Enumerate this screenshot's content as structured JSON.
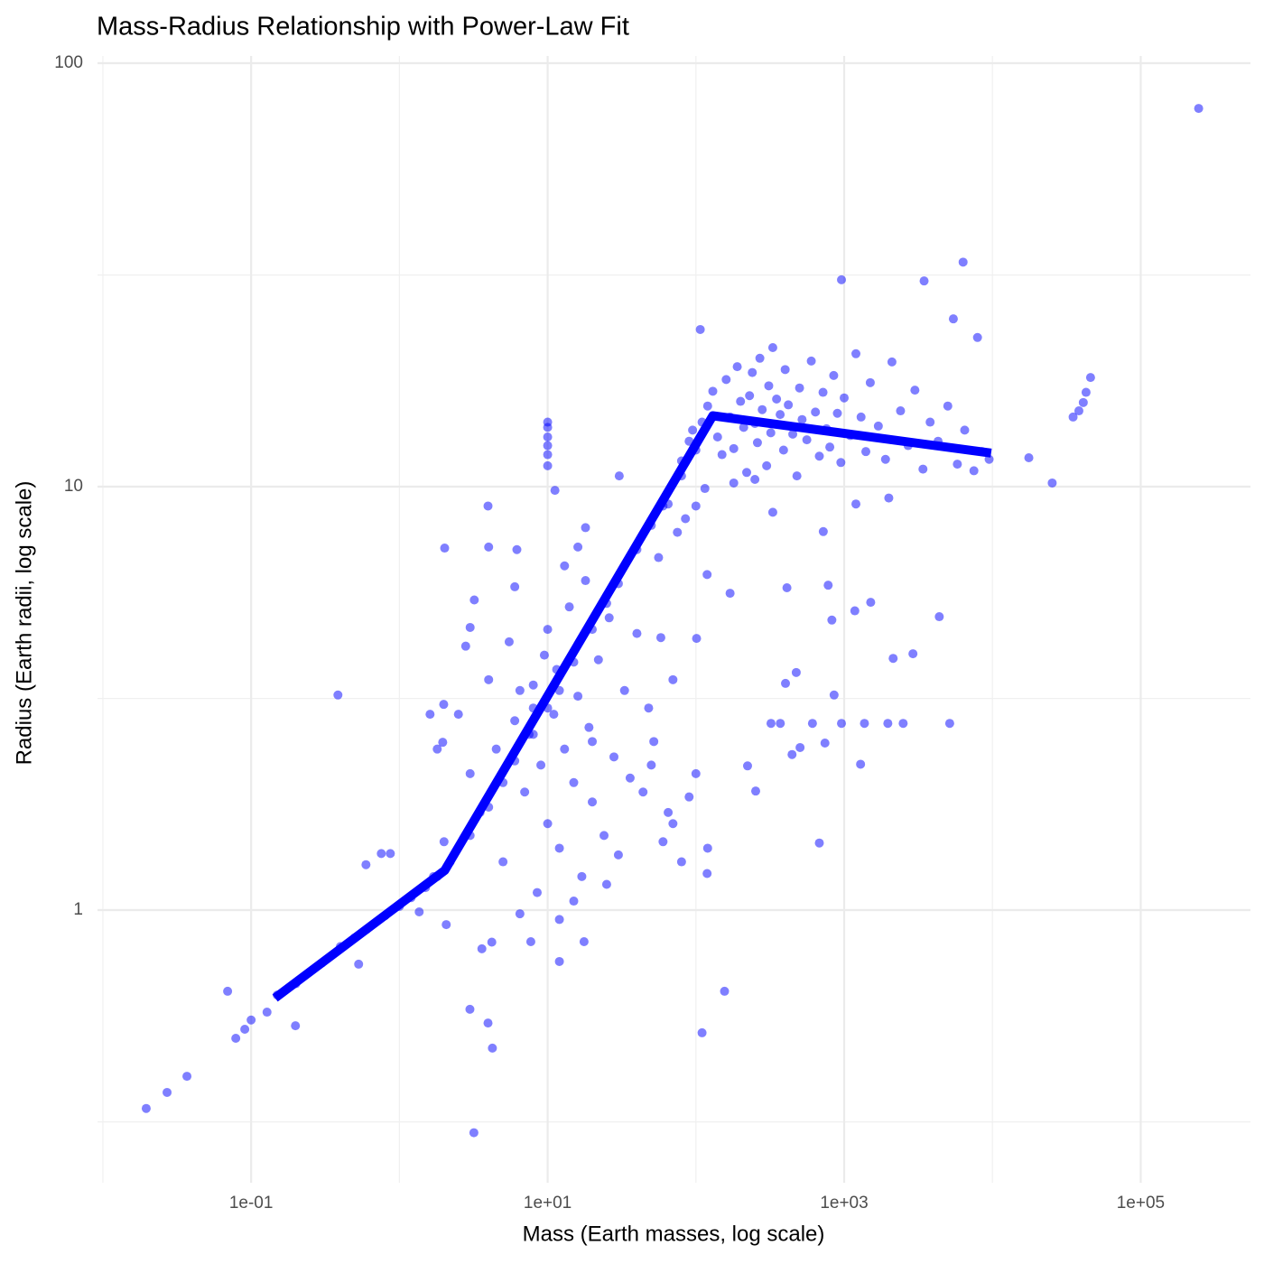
{
  "chart_data": {
    "type": "scatter",
    "title": "Mass-Radius Relationship with Power-Law Fit",
    "x_label": "Mass (Earth masses, log scale)",
    "y_label": "Radius (Earth radii, log scale)",
    "xlog": true,
    "ylog": true,
    "grid": true,
    "xlim": [
      0.0092,
      550000
    ],
    "ylim": [
      0.227,
      104
    ],
    "xticks": [
      {
        "value": 0.1,
        "label": "1e-01"
      },
      {
        "value": 10,
        "label": "1e+01"
      },
      {
        "value": 1000,
        "label": "1e+03"
      },
      {
        "value": 100000,
        "label": "1e+05"
      }
    ],
    "xminor": [
      0.01,
      1,
      100,
      10000
    ],
    "yticks": [
      1,
      10,
      100
    ],
    "yminor": [
      0.316,
      3.16,
      31.6
    ],
    "series": [
      {
        "type": "scatter",
        "color": "#0000ff",
        "opacity": 0.5,
        "x": [
          0.0196,
          0.0271,
          0.0369,
          0.0694,
          0.0788,
          0.0906,
          0.1,
          0.128,
          0.199,
          0.385,
          0.755,
          0.869,
          0.595,
          0.531,
          1.36,
          2.02,
          1.99,
          1.61,
          1.96,
          2.07,
          2.99,
          3.18,
          3.96,
          4.24,
          3.96,
          3.0,
          4.0,
          6.2,
          7.7,
          17.6,
          12.0,
          11.2,
          30.4,
          56,
          110,
          156,
          119,
          101,
          119,
          170,
          411,
          780,
          826,
          1180,
          1510,
          4380,
          2910,
          2140,
          475,
          402,
          855,
          321,
          371,
          611,
          959,
          1370,
          1970,
          2500,
          5150,
          504,
          445,
          742,
          1290,
          223,
          253,
          680,
          723,
          959,
          6340,
          3460,
          5450,
          7930,
          17600,
          25300,
          35000,
          38300,
          41000,
          42800,
          45900,
          246000,
          107,
          10,
          10,
          10,
          10,
          10,
          10,
          80,
          90,
          95,
          110,
          120,
          130,
          140,
          150,
          160,
          170,
          180,
          190,
          200,
          210,
          220,
          230,
          240,
          250,
          260,
          270,
          280,
          300,
          310,
          320,
          330,
          350,
          370,
          390,
          400,
          420,
          450,
          480,
          500,
          520,
          560,
          600,
          640,
          680,
          720,
          760,
          800,
          850,
          900,
          950,
          1000,
          1100,
          1200,
          1300,
          1400,
          1500,
          1700,
          1900,
          2100,
          2400,
          2700,
          3000,
          3400,
          3800,
          4300,
          5000,
          5800,
          6500,
          7500,
          8500,
          9500,
          115,
          180,
          250,
          330,
          1200,
          2000,
          100,
          85,
          75,
          65,
          2.5,
          3,
          3.5,
          4,
          4.5,
          5,
          5.5,
          6,
          6.5,
          7,
          7.5,
          8,
          8.5,
          9,
          9.5,
          10,
          11,
          11.5,
          12,
          13,
          14,
          15,
          16,
          17,
          18,
          19,
          20,
          22,
          24,
          26,
          28,
          30,
          33,
          36,
          40,
          44,
          48,
          52,
          58,
          65,
          70,
          3.2,
          2.8,
          2,
          1.8,
          1.7,
          2.2,
          4.2,
          3.6,
          6.5,
          12,
          15,
          20,
          25,
          6,
          8,
          10,
          13,
          16,
          18,
          50,
          60,
          70,
          80,
          90,
          100,
          120,
          0.15,
          0.2,
          0.3,
          0.4,
          0.5,
          0.6,
          0.8,
          1.0,
          1.2,
          1.5,
          1.8,
          3,
          4,
          5,
          6,
          8,
          10,
          12,
          15,
          20,
          25,
          30,
          40,
          50,
          60,
          80,
          100
        ],
        "y": [
          0.34,
          0.371,
          0.405,
          0.643,
          0.498,
          0.523,
          0.55,
          0.574,
          0.533,
          3.22,
          1.36,
          1.36,
          1.28,
          0.745,
          0.99,
          7.16,
          3.06,
          2.9,
          2.49,
          0.924,
          0.583,
          0.298,
          0.541,
          0.472,
          9.0,
          4.65,
          7.2,
          7.1,
          0.842,
          0.842,
          0.756,
          9.8,
          10.6,
          6.8,
          0.513,
          0.643,
          1.22,
          4.38,
          6.2,
          5.6,
          5.77,
          5.85,
          4.84,
          5.09,
          5.33,
          4.93,
          4.03,
          3.93,
          3.64,
          3.43,
          3.22,
          2.76,
          2.76,
          2.76,
          2.76,
          2.76,
          2.76,
          2.76,
          2.76,
          2.42,
          2.33,
          2.48,
          2.21,
          2.19,
          1.91,
          1.44,
          7.83,
          30.8,
          33.9,
          30.6,
          24.9,
          22.5,
          11.7,
          10.2,
          14.6,
          15.1,
          15.8,
          16.7,
          18.1,
          78.2,
          23.5,
          11.2,
          11.9,
          12.5,
          13.1,
          13.8,
          14.2,
          11.5,
          12.8,
          13.6,
          14.2,
          15.5,
          16.8,
          13.1,
          11.9,
          17.9,
          14.6,
          12.3,
          19.2,
          15.9,
          13.8,
          10.8,
          16.4,
          18.6,
          14.1,
          12.7,
          20.1,
          15.2,
          11.2,
          17.3,
          13.4,
          21.3,
          16.1,
          14.8,
          12.2,
          18.9,
          15.6,
          13.3,
          10.6,
          17.1,
          14.4,
          12.9,
          19.8,
          15.0,
          11.8,
          16.7,
          13.7,
          12.4,
          18.3,
          14.9,
          11.4,
          16.2,
          13.2,
          20.6,
          14.6,
          12.1,
          17.6,
          13.9,
          11.6,
          19.7,
          15.1,
          12.5,
          16.9,
          11.0,
          14.2,
          12.8,
          15.5,
          11.3,
          13.6,
          10.9,
          12.1,
          11.6,
          9.9,
          10.2,
          10.4,
          8.7,
          9.1,
          9.4,
          9.0,
          8.4,
          7.8,
          9.1,
          2.9,
          2.1,
          1.7,
          3.5,
          2.4,
          1.3,
          4.3,
          2.8,
          3.3,
          1.9,
          2.6,
          3.0,
          1.1,
          2.2,
          4.0,
          1.6,
          2.9,
          3.7,
          1.4,
          2.4,
          5.2,
          2.0,
          3.2,
          1.2,
          6.0,
          2.7,
          1.8,
          3.9,
          1.5,
          4.9,
          2.3,
          1.35,
          3.3,
          2.05,
          4.5,
          1.9,
          3.0,
          2.5,
          4.4,
          1.7,
          3.5,
          5.4,
          4.2,
          1.45,
          2.4,
          1.2,
          1.3,
          0.84,
          0.81,
          0.98,
          0.95,
          1.05,
          2.5,
          1.15,
          5.8,
          3.4,
          4.6,
          6.5,
          7.2,
          8.0,
          2.2,
          1.45,
          1.6,
          1.3,
          1.85,
          2.1,
          1.4,
          0.63,
          0.67,
          0.75,
          0.82,
          0.86,
          0.9,
          0.97,
          1.02,
          1.07,
          1.13,
          1.2,
          1.5,
          1.75,
          2.0,
          2.25,
          2.6,
          3.0,
          3.3,
          3.85,
          4.6,
          5.3,
          5.9,
          7.1,
          8.1,
          9.0,
          10.6,
          12.2
        ]
      },
      {
        "type": "line",
        "color": "#0000ff",
        "x": [
          0.145,
          2.02,
          130,
          9800
        ],
        "y": [
          0.62,
          1.24,
          14.7,
          12.0
        ]
      }
    ]
  }
}
